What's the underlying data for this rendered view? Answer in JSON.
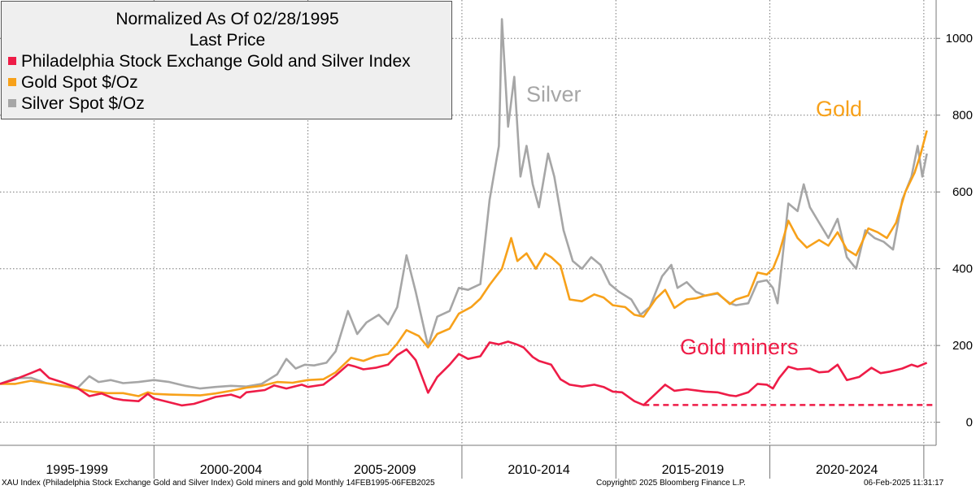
{
  "legend": {
    "title_line1": "Normalized As Of 02/28/1995",
    "title_line2": "Last Price"
  },
  "annotations": {
    "silver": "Silver",
    "gold": "Gold",
    "miners": "Gold miners"
  },
  "footer": {
    "source": "XAU Index (Philadelphia Stock Exchange Gold and Silver Index) Gold miners and gold  Monthly 14FEB1995-06FEB2025",
    "copyright": "Copyright© 2025 Bloomberg Finance L.P.",
    "timestamp": "06-Feb-2025 11:31:17"
  },
  "colors": {
    "xau": "#ee1c47",
    "gold": "#f7a11a",
    "silver": "#a6a6a6"
  },
  "chart_data": {
    "type": "line",
    "x_unit": "year",
    "y_axis": {
      "range": [
        -60,
        1100
      ],
      "ticks": [
        0,
        200,
        400,
        600,
        800,
        1000
      ],
      "position": "right"
    },
    "x_axis": {
      "range": [
        1995.0,
        2025.4
      ],
      "categories": [
        "1995-1999",
        "2000-2004",
        "2005-2009",
        "2010-2014",
        "2015-2019",
        "2020-2024"
      ],
      "boundaries": [
        1995.0,
        2000.0,
        2005.0,
        2010.0,
        2015.0,
        2020.0,
        2025.0
      ]
    },
    "grid": true,
    "legend_position": "top-left",
    "series": [
      {
        "name": "Philadelphia Stock Exchange Gold and Silver Index",
        "key": "xau",
        "points": [
          [
            1995.0,
            100
          ],
          [
            1995.5,
            112
          ],
          [
            1996.0,
            128
          ],
          [
            1996.3,
            138
          ],
          [
            1996.6,
            115
          ],
          [
            1997.0,
            105
          ],
          [
            1997.5,
            90
          ],
          [
            1997.9,
            68
          ],
          [
            1998.3,
            75
          ],
          [
            1998.7,
            62
          ],
          [
            1999.0,
            58
          ],
          [
            1999.5,
            55
          ],
          [
            1999.8,
            74
          ],
          [
            2000.0,
            62
          ],
          [
            2000.4,
            54
          ],
          [
            2000.9,
            44
          ],
          [
            2001.3,
            48
          ],
          [
            2001.7,
            58
          ],
          [
            2002.0,
            66
          ],
          [
            2002.5,
            72
          ],
          [
            2002.8,
            64
          ],
          [
            2003.0,
            78
          ],
          [
            2003.6,
            84
          ],
          [
            2003.9,
            96
          ],
          [
            2004.3,
            88
          ],
          [
            2004.8,
            98
          ],
          [
            2005.0,
            92
          ],
          [
            2005.5,
            98
          ],
          [
            2005.9,
            122
          ],
          [
            2006.3,
            150
          ],
          [
            2006.5,
            146
          ],
          [
            2006.8,
            138
          ],
          [
            2007.2,
            142
          ],
          [
            2007.6,
            150
          ],
          [
            2007.9,
            175
          ],
          [
            2008.2,
            190
          ],
          [
            2008.5,
            162
          ],
          [
            2008.9,
            77
          ],
          [
            2009.2,
            118
          ],
          [
            2009.6,
            150
          ],
          [
            2009.9,
            178
          ],
          [
            2010.2,
            165
          ],
          [
            2010.6,
            172
          ],
          [
            2010.9,
            208
          ],
          [
            2011.2,
            203
          ],
          [
            2011.5,
            210
          ],
          [
            2011.8,
            202
          ],
          [
            2012.0,
            195
          ],
          [
            2012.3,
            170
          ],
          [
            2012.5,
            160
          ],
          [
            2012.9,
            150
          ],
          [
            2013.2,
            112
          ],
          [
            2013.5,
            98
          ],
          [
            2013.9,
            93
          ],
          [
            2014.3,
            98
          ],
          [
            2014.6,
            92
          ],
          [
            2014.9,
            80
          ],
          [
            2015.2,
            78
          ],
          [
            2015.6,
            55
          ],
          [
            2015.9,
            45
          ],
          [
            2016.3,
            75
          ],
          [
            2016.6,
            98
          ],
          [
            2016.9,
            82
          ],
          [
            2017.3,
            86
          ],
          [
            2017.6,
            83
          ],
          [
            2017.9,
            80
          ],
          [
            2018.3,
            78
          ],
          [
            2018.7,
            70
          ],
          [
            2018.9,
            68
          ],
          [
            2019.3,
            78
          ],
          [
            2019.6,
            100
          ],
          [
            2019.9,
            98
          ],
          [
            2020.1,
            88
          ],
          [
            2020.3,
            115
          ],
          [
            2020.6,
            145
          ],
          [
            2020.9,
            138
          ],
          [
            2021.3,
            140
          ],
          [
            2021.6,
            130
          ],
          [
            2021.9,
            132
          ],
          [
            2022.2,
            150
          ],
          [
            2022.5,
            110
          ],
          [
            2022.9,
            118
          ],
          [
            2023.3,
            142
          ],
          [
            2023.6,
            128
          ],
          [
            2023.9,
            132
          ],
          [
            2024.3,
            140
          ],
          [
            2024.6,
            150
          ],
          [
            2024.8,
            145
          ],
          [
            2025.1,
            155
          ]
        ]
      },
      {
        "name": "Gold Spot $/Oz",
        "key": "gold",
        "points": [
          [
            1995.0,
            100
          ],
          [
            1995.5,
            100
          ],
          [
            1996.0,
            108
          ],
          [
            1996.5,
            102
          ],
          [
            1997.0,
            96
          ],
          [
            1997.5,
            88
          ],
          [
            1998.0,
            80
          ],
          [
            1998.5,
            76
          ],
          [
            1999.0,
            76
          ],
          [
            1999.5,
            68
          ],
          [
            1999.8,
            78
          ],
          [
            2000.0,
            74
          ],
          [
            2000.5,
            72
          ],
          [
            2001.0,
            71
          ],
          [
            2001.5,
            70
          ],
          [
            2002.0,
            75
          ],
          [
            2002.5,
            82
          ],
          [
            2003.0,
            90
          ],
          [
            2003.5,
            95
          ],
          [
            2004.0,
            105
          ],
          [
            2004.5,
            103
          ],
          [
            2005.0,
            110
          ],
          [
            2005.5,
            112
          ],
          [
            2005.9,
            130
          ],
          [
            2006.4,
            168
          ],
          [
            2006.8,
            160
          ],
          [
            2007.2,
            172
          ],
          [
            2007.6,
            178
          ],
          [
            2007.9,
            205
          ],
          [
            2008.2,
            240
          ],
          [
            2008.6,
            225
          ],
          [
            2008.9,
            195
          ],
          [
            2009.2,
            230
          ],
          [
            2009.6,
            244
          ],
          [
            2009.9,
            283
          ],
          [
            2010.3,
            300
          ],
          [
            2010.6,
            322
          ],
          [
            2010.9,
            358
          ],
          [
            2011.3,
            400
          ],
          [
            2011.6,
            480
          ],
          [
            2011.8,
            420
          ],
          [
            2012.1,
            440
          ],
          [
            2012.4,
            400
          ],
          [
            2012.7,
            440
          ],
          [
            2012.9,
            430
          ],
          [
            2013.2,
            408
          ],
          [
            2013.5,
            320
          ],
          [
            2013.9,
            315
          ],
          [
            2014.3,
            333
          ],
          [
            2014.6,
            325
          ],
          [
            2014.9,
            305
          ],
          [
            2015.3,
            300
          ],
          [
            2015.6,
            280
          ],
          [
            2015.9,
            275
          ],
          [
            2016.3,
            322
          ],
          [
            2016.6,
            345
          ],
          [
            2016.9,
            298
          ],
          [
            2017.3,
            320
          ],
          [
            2017.6,
            323
          ],
          [
            2017.9,
            330
          ],
          [
            2018.3,
            337
          ],
          [
            2018.7,
            308
          ],
          [
            2018.9,
            320
          ],
          [
            2019.3,
            330
          ],
          [
            2019.6,
            390
          ],
          [
            2019.9,
            385
          ],
          [
            2020.1,
            400
          ],
          [
            2020.3,
            440
          ],
          [
            2020.6,
            525
          ],
          [
            2020.9,
            480
          ],
          [
            2021.2,
            455
          ],
          [
            2021.6,
            475
          ],
          [
            2021.9,
            460
          ],
          [
            2022.2,
            495
          ],
          [
            2022.5,
            450
          ],
          [
            2022.8,
            435
          ],
          [
            2023.2,
            505
          ],
          [
            2023.5,
            495
          ],
          [
            2023.8,
            480
          ],
          [
            2024.1,
            520
          ],
          [
            2024.4,
            600
          ],
          [
            2024.7,
            650
          ],
          [
            2024.9,
            700
          ],
          [
            2025.1,
            760
          ]
        ]
      },
      {
        "name": "Silver Spot $/Oz",
        "key": "silver",
        "points": [
          [
            1995.0,
            100
          ],
          [
            1995.5,
            115
          ],
          [
            1996.0,
            116
          ],
          [
            1996.5,
            102
          ],
          [
            1997.0,
            95
          ],
          [
            1997.5,
            88
          ],
          [
            1997.9,
            120
          ],
          [
            1998.2,
            105
          ],
          [
            1998.6,
            110
          ],
          [
            1999.0,
            102
          ],
          [
            1999.5,
            105
          ],
          [
            2000.0,
            110
          ],
          [
            2000.5,
            105
          ],
          [
            2001.0,
            95
          ],
          [
            2001.5,
            88
          ],
          [
            2002.0,
            92
          ],
          [
            2002.5,
            95
          ],
          [
            2003.0,
            93
          ],
          [
            2003.5,
            100
          ],
          [
            2004.0,
            125
          ],
          [
            2004.3,
            165
          ],
          [
            2004.6,
            140
          ],
          [
            2004.9,
            150
          ],
          [
            2005.2,
            148
          ],
          [
            2005.6,
            155
          ],
          [
            2005.9,
            185
          ],
          [
            2006.3,
            290
          ],
          [
            2006.6,
            230
          ],
          [
            2006.9,
            260
          ],
          [
            2007.3,
            280
          ],
          [
            2007.6,
            255
          ],
          [
            2007.9,
            300
          ],
          [
            2008.2,
            435
          ],
          [
            2008.5,
            340
          ],
          [
            2008.9,
            198
          ],
          [
            2009.2,
            275
          ],
          [
            2009.6,
            290
          ],
          [
            2009.9,
            350
          ],
          [
            2010.2,
            345
          ],
          [
            2010.6,
            360
          ],
          [
            2010.9,
            580
          ],
          [
            2011.2,
            720
          ],
          [
            2011.3,
            1050
          ],
          [
            2011.5,
            770
          ],
          [
            2011.7,
            900
          ],
          [
            2011.9,
            640
          ],
          [
            2012.1,
            720
          ],
          [
            2012.3,
            620
          ],
          [
            2012.5,
            560
          ],
          [
            2012.8,
            700
          ],
          [
            2013.0,
            640
          ],
          [
            2013.3,
            500
          ],
          [
            2013.6,
            420
          ],
          [
            2013.9,
            400
          ],
          [
            2014.2,
            430
          ],
          [
            2014.5,
            410
          ],
          [
            2014.8,
            360
          ],
          [
            2015.1,
            340
          ],
          [
            2015.5,
            320
          ],
          [
            2015.8,
            280
          ],
          [
            2016.1,
            300
          ],
          [
            2016.5,
            380
          ],
          [
            2016.8,
            410
          ],
          [
            2017.0,
            350
          ],
          [
            2017.3,
            365
          ],
          [
            2017.6,
            340
          ],
          [
            2017.9,
            330
          ],
          [
            2018.3,
            335
          ],
          [
            2018.7,
            310
          ],
          [
            2018.9,
            305
          ],
          [
            2019.3,
            310
          ],
          [
            2019.6,
            365
          ],
          [
            2019.9,
            370
          ],
          [
            2020.1,
            350
          ],
          [
            2020.25,
            310
          ],
          [
            2020.6,
            570
          ],
          [
            2020.9,
            550
          ],
          [
            2021.1,
            620
          ],
          [
            2021.3,
            560
          ],
          [
            2021.6,
            520
          ],
          [
            2021.9,
            480
          ],
          [
            2022.2,
            530
          ],
          [
            2022.5,
            430
          ],
          [
            2022.8,
            400
          ],
          [
            2023.1,
            500
          ],
          [
            2023.4,
            480
          ],
          [
            2023.7,
            470
          ],
          [
            2024.0,
            450
          ],
          [
            2024.3,
            580
          ],
          [
            2024.6,
            640
          ],
          [
            2024.8,
            720
          ],
          [
            2024.95,
            640
          ],
          [
            2025.1,
            700
          ]
        ]
      }
    ],
    "reference_line": {
      "label": "",
      "value": 45,
      "from_x": 2015.9,
      "to_x": 2025.4,
      "style": "dashed",
      "series_key": "xau"
    }
  }
}
